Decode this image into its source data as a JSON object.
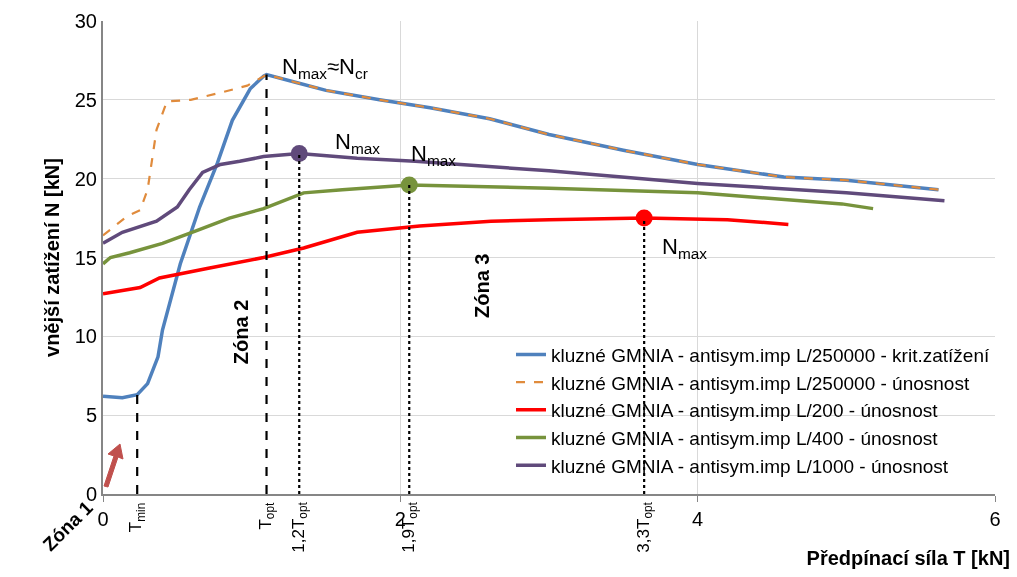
{
  "chart_data": {
    "type": "line",
    "xlabel": "Předpínací síla T [kN]",
    "ylabel": "vnější zatížení N [kN]",
    "xlim": [
      0,
      6
    ],
    "xticks": [
      0,
      2,
      4,
      6
    ],
    "ylim": [
      0,
      30
    ],
    "yticks": [
      0,
      5,
      10,
      15,
      20,
      25,
      30
    ],
    "grid": true,
    "legend": "bottom right",
    "series": [
      {
        "name": "kluzné GMNIA - antisym.imp L/250000 - krit.zatížení",
        "color": "#4f81bd",
        "x": [
          0,
          0.13,
          0.23,
          0.3,
          0.37,
          0.4,
          0.52,
          0.65,
          0.77,
          0.87,
          0.99,
          1.08,
          1.1,
          1.3,
          1.5,
          1.86,
          2.2,
          2.6,
          3.0,
          3.5,
          4.0,
          4.58,
          5.0,
          5.62
        ],
        "values": [
          6.2,
          6.1,
          6.3,
          7.0,
          8.7,
          10.4,
          14.6,
          18.2,
          21.0,
          23.7,
          25.7,
          26.5,
          26.6,
          26.1,
          25.6,
          25.0,
          24.5,
          23.8,
          22.8,
          21.8,
          20.9,
          20.1,
          19.9,
          19.3
        ]
      },
      {
        "name": "kluzné GMNIA - antisym.imp L/250000 - únosnost",
        "color": "#e08b3c",
        "line_style": "dashed",
        "x": [
          0,
          0.16,
          0.25,
          0.3,
          0.36,
          0.43,
          0.59,
          0.81,
          0.97,
          1.1,
          1.3,
          1.5,
          1.86,
          2.2,
          2.6,
          3.0,
          3.5,
          4.0,
          4.58,
          5.0,
          5.62
        ],
        "values": [
          16.4,
          17.6,
          18.0,
          19.3,
          23.1,
          24.9,
          25.0,
          25.5,
          25.9,
          26.6,
          26.1,
          25.6,
          25.0,
          24.5,
          23.8,
          22.8,
          21.8,
          20.9,
          20.1,
          19.9,
          19.3
        ]
      },
      {
        "name": "kluzné GMNIA - antisym.imp L/200 - únosnost",
        "color": "#ff0000",
        "x": [
          0,
          0.25,
          0.38,
          0.7,
          1.08,
          1.35,
          1.71,
          2.13,
          2.61,
          3.0,
          3.64,
          4.2,
          4.61
        ],
        "values": [
          12.7,
          13.1,
          13.7,
          14.3,
          15.0,
          15.6,
          16.6,
          17.0,
          17.3,
          17.4,
          17.5,
          17.4,
          17.1
        ]
      },
      {
        "name": "kluzné GMNIA - antisym.imp L/400 - únosnost",
        "color": "#77933c",
        "x": [
          0,
          0.05,
          0.18,
          0.4,
          0.63,
          0.85,
          1.08,
          1.35,
          1.61,
          2.06,
          3.0,
          4.0,
          4.97,
          5.18
        ],
        "values": [
          14.6,
          15.0,
          15.3,
          15.9,
          16.7,
          17.5,
          18.1,
          19.1,
          19.3,
          19.6,
          19.4,
          19.1,
          18.4,
          18.1
        ]
      },
      {
        "name": "kluzné GMNIA - antisym.imp L/1000 - únosnost",
        "color": "#604a7b",
        "x": [
          0,
          0.13,
          0.36,
          0.5,
          0.58,
          0.67,
          0.79,
          0.92,
          1.08,
          1.32,
          1.71,
          2.1,
          3.0,
          4.0,
          5.0,
          5.66
        ],
        "values": [
          15.9,
          16.6,
          17.3,
          18.2,
          19.3,
          20.4,
          20.9,
          21.1,
          21.4,
          21.6,
          21.3,
          21.1,
          20.5,
          19.7,
          19.1,
          18.6
        ]
      },
      {
        "type": "scatter",
        "marker": "circle",
        "color": "#604a7b",
        "x": [
          1.32
        ],
        "values": [
          21.6
        ]
      },
      {
        "type": "scatter",
        "marker": "circle",
        "color": "#77933c",
        "x": [
          2.06
        ],
        "values": [
          19.6
        ]
      },
      {
        "type": "scatter",
        "marker": "circle",
        "color": "#ff0000",
        "x": [
          3.64
        ],
        "values": [
          17.5
        ]
      },
      {
        "color": "#000000",
        "line_style": "dashed",
        "x": [
          0.23,
          0.23
        ],
        "values": [
          0,
          6.3
        ]
      },
      {
        "color": "#000000",
        "line_style": "dashed",
        "x": [
          1.1,
          1.1
        ],
        "values": [
          0,
          26.6
        ]
      },
      {
        "color": "#000000",
        "line_style": "dotted",
        "x": [
          1.32,
          1.32
        ],
        "values": [
          0,
          21.6
        ]
      },
      {
        "color": "#000000",
        "line_style": "dotted",
        "x": [
          2.06,
          2.06
        ],
        "values": [
          0,
          19.6
        ]
      },
      {
        "color": "#000000",
        "line_style": "dotted",
        "x": [
          3.64,
          3.64
        ],
        "values": [
          0,
          17.5
        ]
      }
    ],
    "annotations": [
      "N$_{max}$≈N$_{cr}$",
      "N$_{max}$",
      "N$_{max}$",
      "N$_{max}$",
      {
        "text": "T$_{min}$",
        "x": 0.23,
        "y": 0
      },
      {
        "text": "T$_{opt}$",
        "x": 1.1,
        "y": 0
      },
      {
        "text": "1,2T$_{opt}$",
        "x": 1.32,
        "y": 0
      },
      {
        "text": "1,9T$_{opt}$",
        "x": 2.06,
        "y": 0
      },
      {
        "text": "3,3T$_{opt}$",
        "x": 3.64,
        "y": 0
      },
      "Zóna 1",
      "Zóna 2",
      "Zóna 3"
    ]
  }
}
